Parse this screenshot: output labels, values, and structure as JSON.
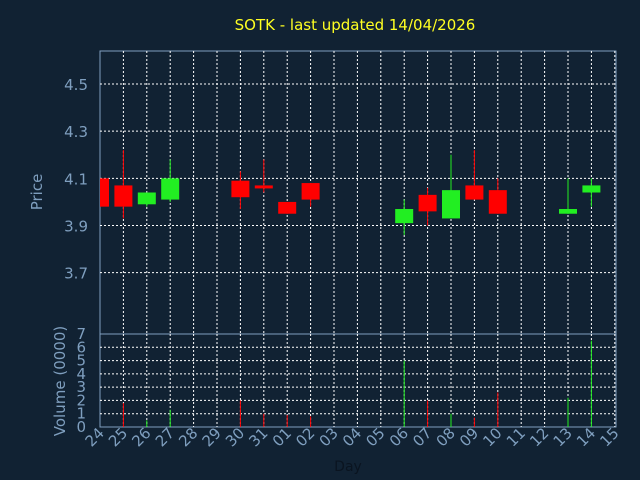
{
  "chart_data": {
    "type": "candlestick",
    "title": "SOTK - last updated 14/04/2026",
    "xlabel": "Day",
    "price_panel": {
      "ylabel": "Price",
      "ylim": [
        3.44,
        4.64
      ],
      "yticks": [
        "4.5",
        "4.3",
        "4.1",
        "3.9",
        "3.7"
      ],
      "ytick_values": [
        4.5,
        4.3,
        4.1,
        3.9,
        3.7
      ]
    },
    "volume_panel": {
      "ylabel": "Volume (0000)",
      "ylim": [
        0,
        7
      ],
      "yticks": [
        "7",
        "6",
        "5",
        "4",
        "3",
        "2",
        "1",
        "0"
      ],
      "ytick_values": [
        7,
        6,
        5,
        4,
        3,
        2,
        1,
        0
      ]
    },
    "x_tick_labels": [
      "24",
      "25",
      "26",
      "27",
      "28",
      "29",
      "30",
      "31",
      "01",
      "02",
      "03",
      "04",
      "05",
      "06",
      "07",
      "08",
      "09",
      "10",
      "11",
      "12",
      "13",
      "14",
      "15"
    ],
    "candles": [
      {
        "day": "24",
        "open": 4.1,
        "high": 4.1,
        "low": 3.98,
        "close": 3.98,
        "volume": 0.0
      },
      {
        "day": "25",
        "open": 4.07,
        "high": 4.22,
        "low": 3.93,
        "close": 3.98,
        "volume": 1.8
      },
      {
        "day": "26",
        "open": 3.99,
        "high": 4.04,
        "low": 3.98,
        "close": 4.04,
        "volume": 0.5
      },
      {
        "day": "27",
        "open": 4.01,
        "high": 4.18,
        "low": 4.0,
        "close": 4.1,
        "volume": 1.3
      },
      {
        "day": "30",
        "open": 4.09,
        "high": 4.13,
        "low": 3.97,
        "close": 4.02,
        "volume": 2.0
      },
      {
        "day": "31",
        "open": 4.07,
        "high": 4.18,
        "low": 4.04,
        "close": 4.06,
        "volume": 1.0
      },
      {
        "day": "01",
        "open": 4.0,
        "high": 4.0,
        "low": 3.95,
        "close": 3.95,
        "volume": 0.9
      },
      {
        "day": "02",
        "open": 4.08,
        "high": 4.08,
        "low": 3.98,
        "close": 4.01,
        "volume": 0.8
      },
      {
        "day": "06",
        "open": 3.91,
        "high": 4.01,
        "low": 3.86,
        "close": 3.97,
        "volume": 5.0
      },
      {
        "day": "07",
        "open": 4.03,
        "high": 4.06,
        "low": 3.9,
        "close": 3.96,
        "volume": 2.0
      },
      {
        "day": "08",
        "open": 3.93,
        "high": 4.2,
        "low": 3.93,
        "close": 4.05,
        "volume": 1.0
      },
      {
        "day": "09",
        "open": 4.07,
        "high": 4.22,
        "low": 4.01,
        "close": 4.01,
        "volume": 0.7
      },
      {
        "day": "10",
        "open": 4.05,
        "high": 4.1,
        "low": 3.95,
        "close": 3.95,
        "volume": 2.6
      },
      {
        "day": "13",
        "open": 3.95,
        "high": 4.1,
        "low": 3.95,
        "close": 3.97,
        "volume": 2.2
      },
      {
        "day": "14",
        "open": 4.04,
        "high": 4.1,
        "low": 3.98,
        "close": 4.07,
        "volume": 6.5
      }
    ],
    "legend": "none",
    "grid": true,
    "colors": {
      "background": "#112233",
      "plot_border": "#7f9fbf",
      "grid": "#ffffff",
      "up": "#22ee22",
      "down": "#ff0000",
      "title": "#ffff22",
      "text": "#7f9fbf",
      "xlabel": "#0a1420"
    }
  }
}
